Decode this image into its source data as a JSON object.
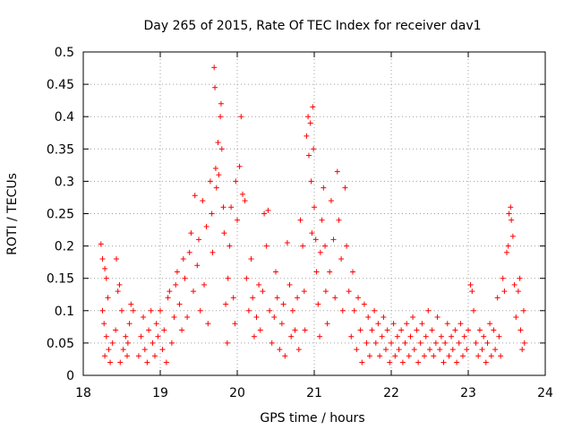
{
  "chart_data": {
    "type": "scatter",
    "title": "Day 265 of 2015, Rate Of TEC Index for receiver dav1",
    "xlabel": "GPS time / hours",
    "ylabel": "ROTI / TECUs",
    "xlim": [
      18,
      24
    ],
    "ylim": [
      0,
      0.5
    ],
    "x_ticks": [
      18,
      19,
      20,
      21,
      22,
      23,
      24
    ],
    "x_tick_labels": [
      "18",
      "19",
      "20",
      "21",
      "22",
      "23",
      "24"
    ],
    "y_ticks": [
      0,
      0.05,
      0.1,
      0.15,
      0.2,
      0.25,
      0.3,
      0.35,
      0.4,
      0.45,
      0.5
    ],
    "y_tick_labels": [
      "0",
      "0.05",
      "0.1",
      "0.15",
      "0.2",
      "0.25",
      "0.3",
      "0.35",
      "0.4",
      "0.45",
      "0.5"
    ],
    "grid": true,
    "marker": "+",
    "color": "#ff0000",
    "series": [
      {
        "name": "dav1",
        "points": [
          [
            18.23,
            0.203
          ],
          [
            18.25,
            0.18
          ],
          [
            18.28,
            0.165
          ],
          [
            18.3,
            0.15
          ],
          [
            18.32,
            0.12
          ],
          [
            18.25,
            0.1
          ],
          [
            18.27,
            0.08
          ],
          [
            18.3,
            0.06
          ],
          [
            18.33,
            0.04
          ],
          [
            18.35,
            0.02
          ],
          [
            18.28,
            0.03
          ],
          [
            18.38,
            0.05
          ],
          [
            18.42,
            0.07
          ],
          [
            18.45,
            0.13
          ],
          [
            18.47,
            0.14
          ],
          [
            18.43,
            0.18
          ],
          [
            18.5,
            0.1
          ],
          [
            18.48,
            0.02
          ],
          [
            18.52,
            0.04
          ],
          [
            18.55,
            0.06
          ],
          [
            18.57,
            0.03
          ],
          [
            18.6,
            0.08
          ],
          [
            18.62,
            0.11
          ],
          [
            18.65,
            0.1
          ],
          [
            18.58,
            0.05
          ],
          [
            18.72,
            0.03
          ],
          [
            18.75,
            0.06
          ],
          [
            18.78,
            0.09
          ],
          [
            18.8,
            0.04
          ],
          [
            18.83,
            0.02
          ],
          [
            18.85,
            0.07
          ],
          [
            18.88,
            0.1
          ],
          [
            18.9,
            0.05
          ],
          [
            18.93,
            0.03
          ],
          [
            18.95,
            0.08
          ],
          [
            18.97,
            0.06
          ],
          [
            19.0,
            0.1
          ],
          [
            19.03,
            0.04
          ],
          [
            19.05,
            0.07
          ],
          [
            19.08,
            0.02
          ],
          [
            19.1,
            0.12
          ],
          [
            19.12,
            0.13
          ],
          [
            19.15,
            0.05
          ],
          [
            19.18,
            0.09
          ],
          [
            19.2,
            0.14
          ],
          [
            19.22,
            0.16
          ],
          [
            19.25,
            0.11
          ],
          [
            19.28,
            0.07
          ],
          [
            19.3,
            0.18
          ],
          [
            19.32,
            0.15
          ],
          [
            19.35,
            0.09
          ],
          [
            19.38,
            0.19
          ],
          [
            19.4,
            0.22
          ],
          [
            19.43,
            0.13
          ],
          [
            19.45,
            0.278
          ],
          [
            19.48,
            0.17
          ],
          [
            19.5,
            0.21
          ],
          [
            19.52,
            0.1
          ],
          [
            19.55,
            0.27
          ],
          [
            19.57,
            0.14
          ],
          [
            19.6,
            0.23
          ],
          [
            19.62,
            0.08
          ],
          [
            19.65,
            0.3
          ],
          [
            19.67,
            0.25
          ],
          [
            19.68,
            0.19
          ],
          [
            19.7,
            0.476
          ],
          [
            19.71,
            0.445
          ],
          [
            19.72,
            0.32
          ],
          [
            19.73,
            0.29
          ],
          [
            19.75,
            0.36
          ],
          [
            19.76,
            0.31
          ],
          [
            19.78,
            0.4
          ],
          [
            19.79,
            0.42
          ],
          [
            19.8,
            0.35
          ],
          [
            19.82,
            0.26
          ],
          [
            19.83,
            0.22
          ],
          [
            19.85,
            0.11
          ],
          [
            19.87,
            0.05
          ],
          [
            19.88,
            0.15
          ],
          [
            19.9,
            0.2
          ],
          [
            19.92,
            0.26
          ],
          [
            19.95,
            0.12
          ],
          [
            19.97,
            0.08
          ],
          [
            19.98,
            0.3
          ],
          [
            20.0,
            0.24
          ],
          [
            20.03,
            0.323
          ],
          [
            20.05,
            0.4
          ],
          [
            20.07,
            0.28
          ],
          [
            20.1,
            0.27
          ],
          [
            20.12,
            0.15
          ],
          [
            20.15,
            0.1
          ],
          [
            20.18,
            0.18
          ],
          [
            20.2,
            0.12
          ],
          [
            20.22,
            0.06
          ],
          [
            20.25,
            0.09
          ],
          [
            20.28,
            0.14
          ],
          [
            20.3,
            0.07
          ],
          [
            20.33,
            0.13
          ],
          [
            20.35,
            0.25
          ],
          [
            20.38,
            0.2
          ],
          [
            20.4,
            0.255
          ],
          [
            20.42,
            0.1
          ],
          [
            20.45,
            0.05
          ],
          [
            20.48,
            0.09
          ],
          [
            20.5,
            0.16
          ],
          [
            20.52,
            0.12
          ],
          [
            20.55,
            0.04
          ],
          [
            20.58,
            0.08
          ],
          [
            20.6,
            0.11
          ],
          [
            20.62,
            0.03
          ],
          [
            20.65,
            0.205
          ],
          [
            20.68,
            0.14
          ],
          [
            20.7,
            0.06
          ],
          [
            20.72,
            0.1
          ],
          [
            20.75,
            0.07
          ],
          [
            20.78,
            0.12
          ],
          [
            20.8,
            0.04
          ],
          [
            20.82,
            0.24
          ],
          [
            20.85,
            0.2
          ],
          [
            20.87,
            0.13
          ],
          [
            20.88,
            0.07
          ],
          [
            20.9,
            0.37
          ],
          [
            20.92,
            0.4
          ],
          [
            20.93,
            0.34
          ],
          [
            20.95,
            0.39
          ],
          [
            20.96,
            0.3
          ],
          [
            20.97,
            0.22
          ],
          [
            20.98,
            0.415
          ],
          [
            20.99,
            0.35
          ],
          [
            21.0,
            0.26
          ],
          [
            21.02,
            0.21
          ],
          [
            21.03,
            0.16
          ],
          [
            21.05,
            0.11
          ],
          [
            21.07,
            0.06
          ],
          [
            21.08,
            0.19
          ],
          [
            21.1,
            0.24
          ],
          [
            21.12,
            0.29
          ],
          [
            21.14,
            0.2
          ],
          [
            21.15,
            0.13
          ],
          [
            21.17,
            0.08
          ],
          [
            21.2,
            0.16
          ],
          [
            21.22,
            0.27
          ],
          [
            21.25,
            0.21
          ],
          [
            21.27,
            0.12
          ],
          [
            21.3,
            0.315
          ],
          [
            21.32,
            0.24
          ],
          [
            21.35,
            0.18
          ],
          [
            21.37,
            0.1
          ],
          [
            21.4,
            0.29
          ],
          [
            21.42,
            0.2
          ],
          [
            21.45,
            0.13
          ],
          [
            21.48,
            0.06
          ],
          [
            21.5,
            0.16
          ],
          [
            21.52,
            0.1
          ],
          [
            21.55,
            0.04
          ],
          [
            21.57,
            0.12
          ],
          [
            21.6,
            0.07
          ],
          [
            21.62,
            0.02
          ],
          [
            21.65,
            0.11
          ],
          [
            21.68,
            0.05
          ],
          [
            21.7,
            0.09
          ],
          [
            21.72,
            0.03
          ],
          [
            21.75,
            0.07
          ],
          [
            21.78,
            0.1
          ],
          [
            21.8,
            0.05
          ],
          [
            21.83,
            0.08
          ],
          [
            21.85,
            0.03
          ],
          [
            21.88,
            0.06
          ],
          [
            21.9,
            0.09
          ],
          [
            21.93,
            0.04
          ],
          [
            21.95,
            0.07
          ],
          [
            21.98,
            0.02
          ],
          [
            22.0,
            0.05
          ],
          [
            22.03,
            0.08
          ],
          [
            22.05,
            0.03
          ],
          [
            22.08,
            0.06
          ],
          [
            22.1,
            0.04
          ],
          [
            22.13,
            0.07
          ],
          [
            22.15,
            0.02
          ],
          [
            22.18,
            0.05
          ],
          [
            22.2,
            0.08
          ],
          [
            22.23,
            0.03
          ],
          [
            22.25,
            0.06
          ],
          [
            22.28,
            0.09
          ],
          [
            22.3,
            0.04
          ],
          [
            22.33,
            0.07
          ],
          [
            22.35,
            0.02
          ],
          [
            22.38,
            0.05
          ],
          [
            22.4,
            0.08
          ],
          [
            22.43,
            0.03
          ],
          [
            22.45,
            0.06
          ],
          [
            22.48,
            0.1
          ],
          [
            22.5,
            0.04
          ],
          [
            22.53,
            0.07
          ],
          [
            22.55,
            0.03
          ],
          [
            22.58,
            0.05
          ],
          [
            22.6,
            0.09
          ],
          [
            22.63,
            0.04
          ],
          [
            22.65,
            0.06
          ],
          [
            22.68,
            0.02
          ],
          [
            22.7,
            0.05
          ],
          [
            22.73,
            0.08
          ],
          [
            22.75,
            0.03
          ],
          [
            22.78,
            0.06
          ],
          [
            22.8,
            0.04
          ],
          [
            22.83,
            0.07
          ],
          [
            22.85,
            0.02
          ],
          [
            22.88,
            0.05
          ],
          [
            22.9,
            0.08
          ],
          [
            22.93,
            0.03
          ],
          [
            22.95,
            0.06
          ],
          [
            22.98,
            0.04
          ],
          [
            23.0,
            0.07
          ],
          [
            23.03,
            0.14
          ],
          [
            23.05,
            0.13
          ],
          [
            23.07,
            0.1
          ],
          [
            23.1,
            0.05
          ],
          [
            23.13,
            0.03
          ],
          [
            23.15,
            0.07
          ],
          [
            23.18,
            0.04
          ],
          [
            23.2,
            0.06
          ],
          [
            23.23,
            0.02
          ],
          [
            23.25,
            0.05
          ],
          [
            23.28,
            0.08
          ],
          [
            23.3,
            0.03
          ],
          [
            23.33,
            0.07
          ],
          [
            23.35,
            0.04
          ],
          [
            23.38,
            0.12
          ],
          [
            23.4,
            0.06
          ],
          [
            23.42,
            0.03
          ],
          [
            23.45,
            0.15
          ],
          [
            23.47,
            0.13
          ],
          [
            23.5,
            0.19
          ],
          [
            23.52,
            0.2
          ],
          [
            23.53,
            0.25
          ],
          [
            23.55,
            0.26
          ],
          [
            23.56,
            0.24
          ],
          [
            23.58,
            0.215
          ],
          [
            23.6,
            0.14
          ],
          [
            23.62,
            0.09
          ],
          [
            23.65,
            0.13
          ],
          [
            23.67,
            0.15
          ],
          [
            23.68,
            0.07
          ],
          [
            23.7,
            0.04
          ],
          [
            23.72,
            0.1
          ],
          [
            23.73,
            0.05
          ]
        ]
      }
    ]
  }
}
